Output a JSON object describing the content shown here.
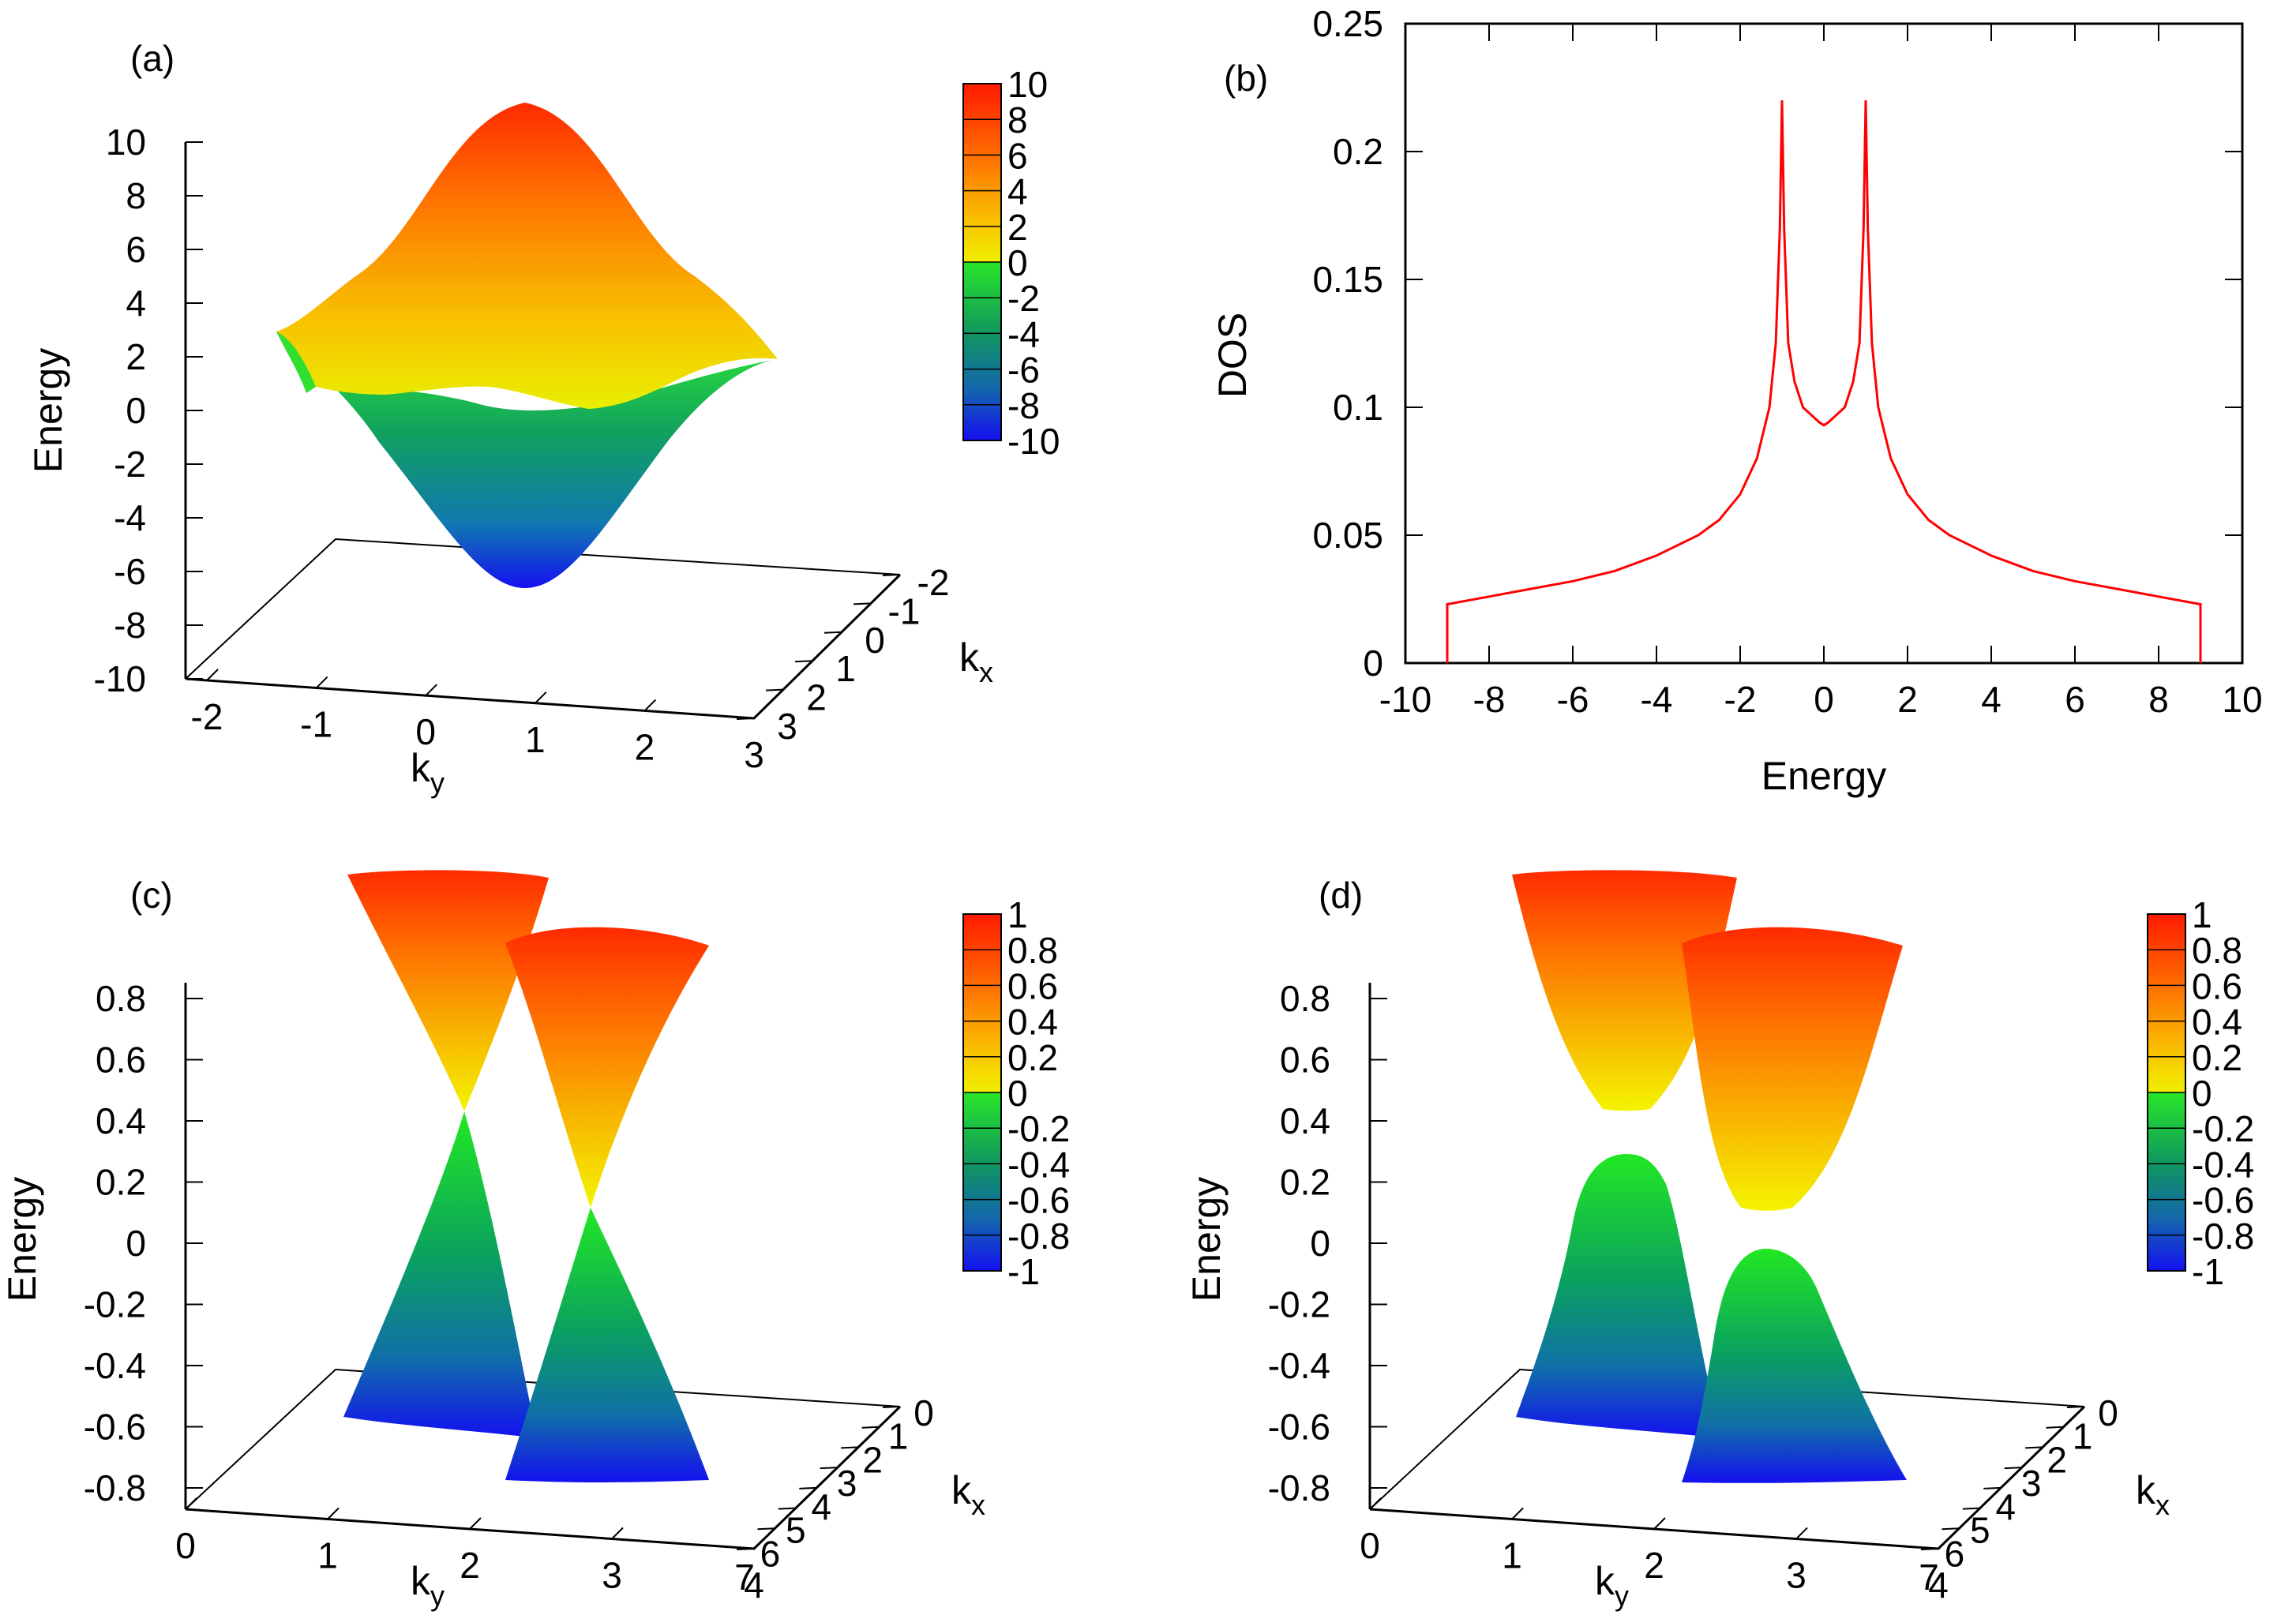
{
  "chart_data": [
    {
      "panel": "(a)",
      "type": "surface3d",
      "zlabel": "Energy",
      "xlabel": "k_y",
      "ylabel": "k_x",
      "zticks": [
        "10",
        "8",
        "6",
        "4",
        "2",
        "0",
        "-2",
        "-4",
        "-6",
        "-8",
        "-10"
      ],
      "xticks": [
        "-2",
        "-1",
        "0",
        "1",
        "2",
        "3"
      ],
      "yticks": [
        "-2",
        "-1",
        "0",
        "1",
        "2",
        "3"
      ],
      "colorbar": {
        "min": -10,
        "max": 10,
        "ticks": [
          "10",
          "8",
          "6",
          "4",
          "2",
          "0",
          "-2",
          "-4",
          "-6",
          "-8",
          "-10"
        ]
      },
      "bands": {
        "upper_peak": 10,
        "upper_edge": 3,
        "lower_min": -6,
        "lower_edge": 1
      }
    },
    {
      "panel": "(b)",
      "type": "line",
      "xlabel": "Energy",
      "ylabel": "DOS",
      "xlim": [
        -10,
        10
      ],
      "ylim": [
        0,
        0.25
      ],
      "xticks": [
        "-10",
        "-8",
        "-6",
        "-4",
        "-2",
        "0",
        "2",
        "4",
        "6",
        "8",
        "10"
      ],
      "yticks": [
        "0",
        "0.05",
        "0.1",
        "0.15",
        "0.2",
        "0.25"
      ],
      "series": [
        {
          "name": "DOS",
          "color": "#ff0000",
          "x": [
            -9,
            -9,
            -8,
            -7,
            -6,
            -5,
            -4,
            -3,
            -2.5,
            -2,
            -1.6,
            -1.3,
            -1.15,
            -1.05,
            -1.0,
            -0.95,
            -0.85,
            -0.7,
            -0.5,
            -0.3,
            -0.1,
            0,
            0.1,
            0.3,
            0.5,
            0.7,
            0.85,
            0.95,
            1.0,
            1.05,
            1.15,
            1.3,
            1.6,
            2,
            2.5,
            3,
            4,
            5,
            6,
            7,
            8,
            9,
            9
          ],
          "y": [
            0,
            0.023,
            0.026,
            0.029,
            0.032,
            0.036,
            0.042,
            0.05,
            0.056,
            0.066,
            0.08,
            0.1,
            0.125,
            0.17,
            0.22,
            0.17,
            0.125,
            0.11,
            0.1,
            0.097,
            0.094,
            0.093,
            0.094,
            0.097,
            0.1,
            0.11,
            0.125,
            0.17,
            0.22,
            0.17,
            0.125,
            0.1,
            0.08,
            0.066,
            0.056,
            0.05,
            0.042,
            0.036,
            0.032,
            0.029,
            0.026,
            0.023,
            0
          ]
        }
      ]
    },
    {
      "panel": "(c)",
      "type": "surface3d",
      "zlabel": "Energy",
      "xlabel": "k_y",
      "ylabel": "k_x",
      "zticks": [
        "0.8",
        "0.6",
        "0.4",
        "0.2",
        "0",
        "-0.2",
        "-0.4",
        "-0.6",
        "-0.8"
      ],
      "xticks": [
        "0",
        "1",
        "2",
        "3",
        "4"
      ],
      "yticks": [
        "0",
        "1",
        "2",
        "3",
        "4",
        "5",
        "6",
        "7"
      ],
      "colorbar": {
        "min": -1,
        "max": 1,
        "ticks": [
          "1",
          "0.8",
          "0.6",
          "0.4",
          "0.2",
          "0",
          "-0.2",
          "-0.4",
          "-0.6",
          "-0.8",
          "-1"
        ]
      },
      "gap": 0
    },
    {
      "panel": "(d)",
      "type": "surface3d",
      "zlabel": "Energy",
      "xlabel": "k_y",
      "ylabel": "k_x",
      "zticks": [
        "0.8",
        "0.6",
        "0.4",
        "0.2",
        "0",
        "-0.2",
        "-0.4",
        "-0.6",
        "-0.8"
      ],
      "xticks": [
        "0",
        "1",
        "2",
        "3",
        "4"
      ],
      "yticks": [
        "0",
        "1",
        "2",
        "3",
        "4",
        "5",
        "6",
        "7"
      ],
      "colorbar": {
        "min": -1,
        "max": 1,
        "ticks": [
          "1",
          "0.8",
          "0.6",
          "0.4",
          "0.2",
          "0",
          "-0.2",
          "-0.4",
          "-0.6",
          "-0.8",
          "-1"
        ]
      },
      "gap": "open"
    }
  ]
}
